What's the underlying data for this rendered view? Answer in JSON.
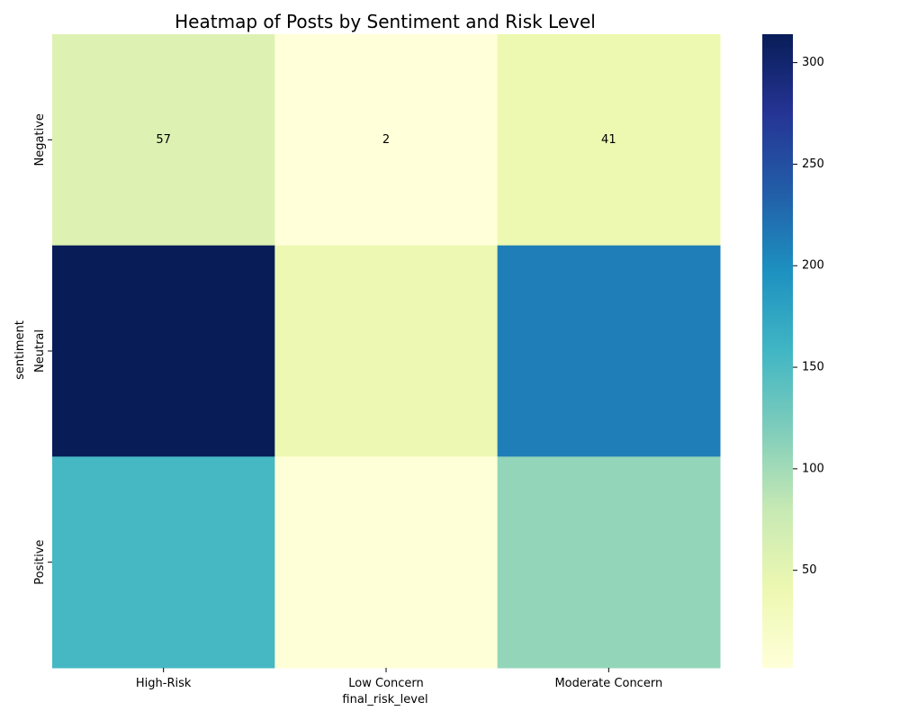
{
  "chart_data": {
    "type": "heatmap",
    "title": "Heatmap of Posts by Sentiment and Risk Level",
    "xlabel": "final_risk_level",
    "ylabel": "sentiment",
    "x_categories": [
      "High-Risk",
      "Low Concern",
      "Moderate Concern"
    ],
    "y_categories": [
      "Negative",
      "Neutral",
      "Positive"
    ],
    "values": [
      [
        57,
        2,
        41
      ],
      [
        314,
        40,
        212
      ],
      [
        155,
        4,
        108
      ]
    ],
    "annotated_cells": [
      [
        0,
        0
      ],
      [
        0,
        1
      ],
      [
        0,
        2
      ]
    ],
    "colormap": "YlGnBu",
    "colorbar": {
      "vmin": 2,
      "vmax": 314,
      "ticks": [
        50,
        100,
        150,
        200,
        250,
        300
      ]
    },
    "grid": false
  }
}
